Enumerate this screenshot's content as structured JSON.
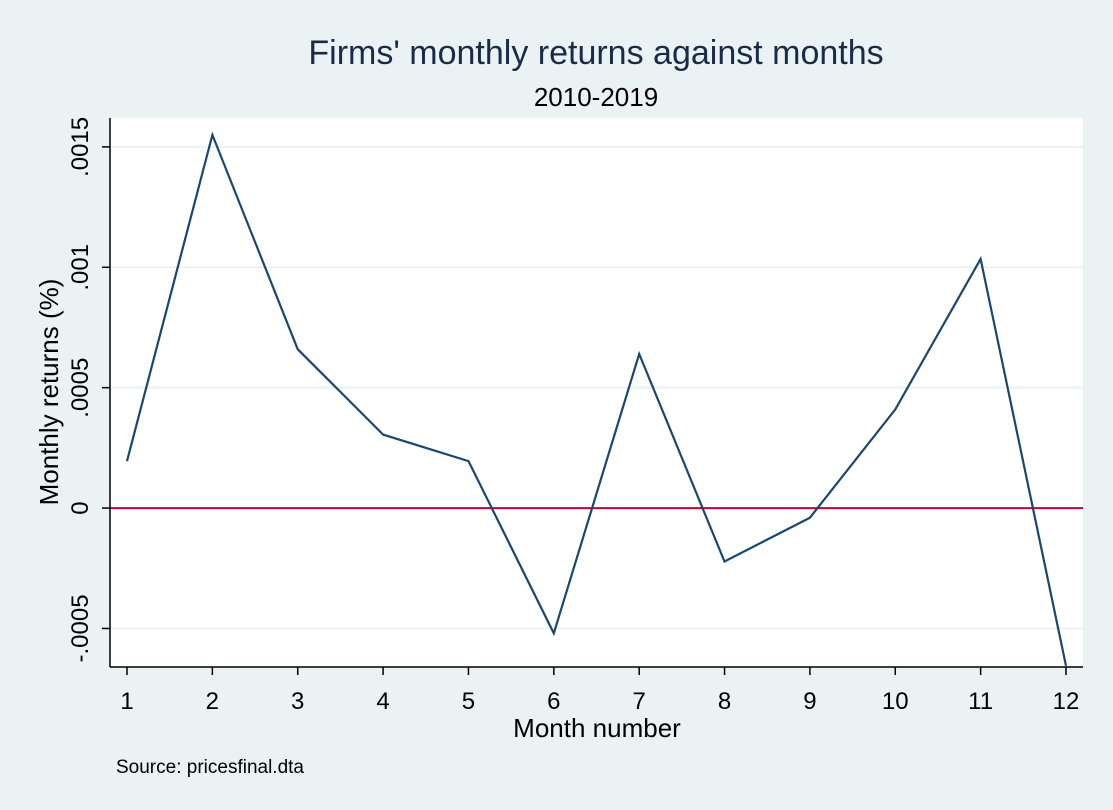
{
  "chart_data": {
    "type": "line",
    "title": "Firms' monthly returns against months",
    "subtitle": "2010-2019",
    "xlabel": "Month number",
    "ylabel": "Monthly returns (%)",
    "note": "Source: pricesfinal.dta",
    "x": [
      1,
      2,
      3,
      4,
      5,
      6,
      7,
      8,
      9,
      10,
      11,
      12
    ],
    "y_ticks": [
      -0.0005,
      0,
      0.0005,
      0.001,
      0.0015
    ],
    "y_tick_labels": [
      "-.0005",
      "0",
      ".0005",
      ".001",
      ".0015"
    ],
    "xlim": [
      1,
      12
    ],
    "ylim": [
      -0.00066,
      0.00162
    ],
    "grid": true,
    "series": [
      {
        "values": [
          0.000195,
          0.00155,
          0.00066,
          0.000305,
          0.000195,
          -0.00052,
          0.00064,
          -0.000222,
          -4e-05,
          0.00041,
          0.001035,
          -0.000655
        ],
        "color": "#1a476f"
      }
    ],
    "reference_line": {
      "y": 0,
      "color": "#c10534"
    },
    "colors": {
      "background": "#eaf2f3",
      "plot_background": "#ffffff",
      "grid": "#eaf2f3",
      "title": "#1a2a4a"
    }
  }
}
